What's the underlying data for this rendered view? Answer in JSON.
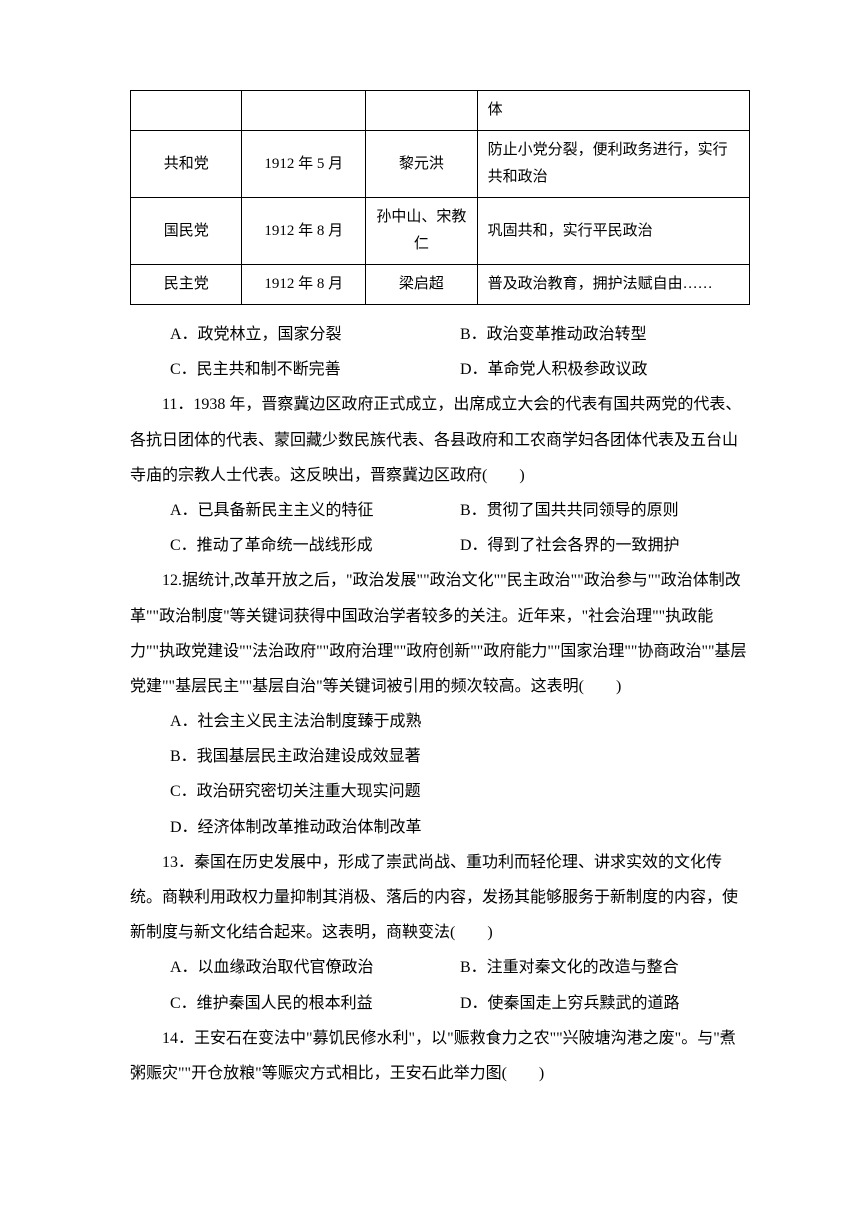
{
  "table": {
    "rows": [
      {
        "col1": "",
        "col2": "",
        "col3": "",
        "col4": "体"
      },
      {
        "col1": "共和党",
        "col2": "1912 年 5 月",
        "col3": "黎元洪",
        "col4": "防止小党分裂，便利政务进行，实行共和政治"
      },
      {
        "col1": "国民党",
        "col2": "1912 年 8 月",
        "col3": "孙中山、宋教仁",
        "col4": "巩固共和，实行平民政治"
      },
      {
        "col1": "民主党",
        "col2": "1912 年 8 月",
        "col3": "梁启超",
        "col4": "普及政治教育，拥护法赋自由……"
      }
    ]
  },
  "q10_options": {
    "a": "A．政党林立，国家分裂",
    "b": "B．政治变革推动政治转型",
    "c": "C．民主共和制不断完善",
    "d": "D．革命党人积极参政议政"
  },
  "q11": {
    "text": "11．1938 年，晋察冀边区政府正式成立，出席成立大会的代表有国共两党的代表、各抗日团体的代表、蒙回藏少数民族代表、各县政府和工农商学妇各团体代表及五台山寺庙的宗教人士代表。这反映出，晋察冀边区政府(　　)",
    "a": "A．已具备新民主主义的特征",
    "b": "B．贯彻了国共共同领导的原则",
    "c": "C．推动了革命统一战线形成",
    "d": "D．得到了社会各界的一致拥护"
  },
  "q12": {
    "text": "12.据统计,改革开放之后，\"政治发展\"\"政治文化\"\"民主政治\"\"政治参与\"\"政治体制改革\"\"政治制度\"等关键词获得中国政治学者较多的关注。近年来，\"社会治理\"\"执政能力\"\"执政党建设\"\"法治政府\"\"政府治理\"\"政府创新\"\"政府能力\"\"国家治理\"\"协商政治\"\"基层党建\"\"基层民主\"\"基层自治\"等关键词被引用的频次较高。这表明(　　)",
    "a": "A．社会主义民主法治制度臻于成熟",
    "b": "B．我国基层民主政治建设成效显著",
    "c": "C．政治研究密切关注重大现实问题",
    "d": "D．经济体制改革推动政治体制改革"
  },
  "q13": {
    "text": "13．秦国在历史发展中，形成了崇武尚战、重功利而轻伦理、讲求实效的文化传统。商鞅利用政权力量抑制其消极、落后的内容，发扬其能够服务于新制度的内容，使新制度与新文化结合起来。这表明，商鞅变法(　　)",
    "a": "A．以血缘政治取代官僚政治",
    "b": "B．注重对秦文化的改造与整合",
    "c": "C．维护秦国人民的根本利益",
    "d": "D．使秦国走上穷兵黩武的道路"
  },
  "q14": {
    "text": "14．王安石在变法中\"募饥民修水利\"，以\"赈救食力之农\"\"兴陂塘沟港之废\"。与\"煮粥赈灾\"\"开仓放粮\"等赈灾方式相比，王安石此举力图(　　)"
  }
}
